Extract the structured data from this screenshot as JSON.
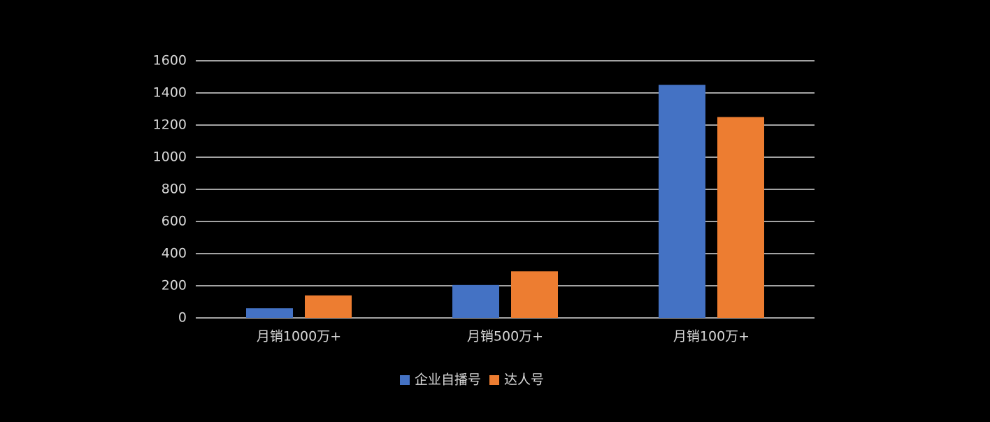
{
  "chart_data": {
    "type": "bar",
    "categories": [
      "月销1000万+",
      "月销500万+",
      "月销100万+"
    ],
    "series": [
      {
        "name": "企业自播号",
        "color": "#4472c4",
        "values": [
          60,
          205,
          1450
        ]
      },
      {
        "name": "达人号",
        "color": "#ed7d31",
        "values": [
          140,
          290,
          1250
        ]
      }
    ],
    "ylim": [
      0,
      1600
    ],
    "yticks": [
      0,
      200,
      400,
      600,
      800,
      1000,
      1200,
      1400,
      1600
    ],
    "grid": true
  }
}
